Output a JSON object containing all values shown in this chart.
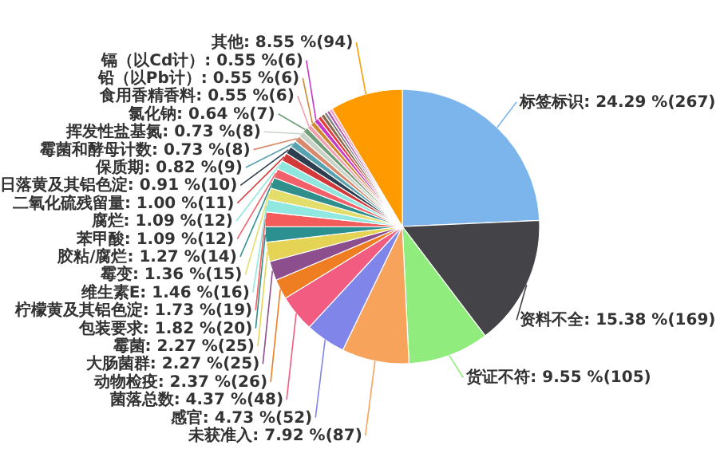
{
  "chart_data": {
    "type": "pie",
    "categories": [
      "标签标识",
      "资料不全",
      "货证不符",
      "未获准入",
      "感官",
      "菌落总数",
      "动物检疫",
      "大肠菌群",
      "霉菌",
      "包装要求",
      "柠檬黄及其铝色淀",
      "维生素E",
      "霉变",
      "胶粘/腐烂",
      "苯甲酸",
      "腐烂",
      "二氧化硫残留量",
      "日落黄及其铝色淀",
      "保质期",
      "霉菌和酵母计数",
      "挥发性盐基氮",
      "氯化钠",
      "食用香精香料",
      "铅（以Pb计）",
      "镉（以Cd计）",
      null,
      null,
      null,
      null,
      null,
      "其他"
    ],
    "values": [
      267,
      169,
      105,
      87,
      52,
      48,
      26,
      25,
      25,
      20,
      19,
      16,
      15,
      14,
      12,
      12,
      11,
      10,
      9,
      8,
      8,
      7,
      6,
      6,
      6,
      5,
      5,
      4,
      4,
      4,
      94
    ],
    "value_labels": [
      "24.29 %(267)",
      "15.38 %(169)",
      "9.55 %(105)",
      "7.92 %(87)",
      "4.73 %(52)",
      "4.37 %(48)",
      "2.37 %(26)",
      "2.27 %(25)",
      "2.27 %(25)",
      "1.82 %(20)",
      "1.73 %(19)",
      "1.46 %(16)",
      "1.36 %(15)",
      "1.27 %(14)",
      "1.09 %(12)",
      "1.09 %(12)",
      "1.00 %(11)",
      "0.91 %(10)",
      "0.82 %(9)",
      "0.73 %(8)",
      "0.73 %(8)",
      "0.64 %(7)",
      "0.55 %(6)",
      "0.55 %(6)",
      "0.55 %(6)",
      null,
      null,
      null,
      null,
      null,
      "8.55 %(94)"
    ],
    "colors": [
      "#7cb5ec",
      "#434348",
      "#90ed7d",
      "#f7a35c",
      "#8085e9",
      "#f15c80",
      "#ef7d22",
      "#8d4e8d",
      "#e4d354",
      "#2b908f",
      "#f45b5b",
      "#91e8e1",
      "#e3dd6a",
      "#2f8f8a",
      "#f4606a",
      "#8fe6dd",
      "#d23a3a",
      "#2e3f50",
      "#59a3b0",
      "#d9896c",
      "#c8d3c8",
      "#6f9f78",
      "#f0a1b0",
      "#cf8a2e",
      "#c838c8",
      "#e83a3a",
      "#8a6b4a",
      "#7f7f7f",
      "#b05ab0",
      "#f4a0c0",
      "#ff9a00"
    ]
  }
}
